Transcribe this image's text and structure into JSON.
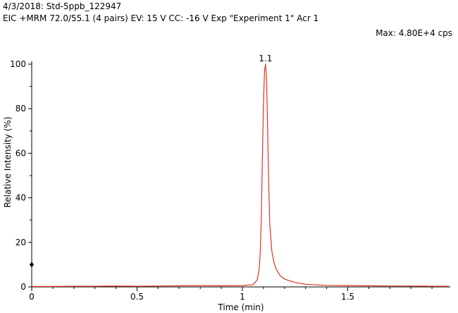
{
  "header": {
    "line1": "4/3/2018: Std-5ppb_122947",
    "line2": "EIC +MRM 72.0/55.1 (4 pairs) EV: 15 V CC: -16 V Exp \"Experiment 1\" Acr 1",
    "max_label": "Max: 4.80E+4 cps"
  },
  "colors": {
    "trace": "#d9341f",
    "axis": "#000000"
  },
  "chart_data": {
    "type": "line",
    "title": "",
    "xlabel": "Time (min)",
    "ylabel": "Relative Intensity (%)",
    "xlim": [
      0,
      1.98
    ],
    "ylim": [
      0,
      100
    ],
    "x_ticks": [
      0,
      0.5,
      1,
      1.5
    ],
    "x_tick_labels": [
      "0",
      "0.5",
      "1",
      "1.5"
    ],
    "y_ticks": [
      0,
      20,
      40,
      60,
      80,
      100
    ],
    "y_tick_labels": [
      "0",
      "20",
      "40",
      "60",
      "80",
      "100"
    ],
    "grid": false,
    "peak_label": "1.1",
    "peak_label_x": 1.11,
    "threshold_marker_y": 10,
    "series": [
      {
        "x": [
          0.0,
          0.1,
          0.2,
          0.3,
          0.4,
          0.5,
          0.6,
          0.7,
          0.8,
          0.9,
          1.0,
          1.05,
          1.07,
          1.08,
          1.085,
          1.09,
          1.095,
          1.1,
          1.105,
          1.11,
          1.115,
          1.12,
          1.125,
          1.13,
          1.14,
          1.15,
          1.16,
          1.18,
          1.2,
          1.25,
          1.3,
          1.4,
          1.5,
          1.6,
          1.7,
          1.8,
          1.9,
          1.98
        ],
        "y": [
          0.2,
          0.2,
          0.3,
          0.3,
          0.4,
          0.3,
          0.4,
          0.5,
          0.6,
          0.5,
          0.6,
          1.0,
          3.0,
          8.0,
          16.0,
          32.0,
          58.0,
          82.0,
          97.0,
          100.0,
          92.0,
          70.0,
          45.0,
          28.0,
          16.0,
          11.0,
          8.0,
          5.0,
          3.5,
          2.0,
          1.2,
          0.7,
          0.6,
          0.5,
          0.4,
          0.4,
          0.3,
          0.3
        ]
      }
    ]
  }
}
